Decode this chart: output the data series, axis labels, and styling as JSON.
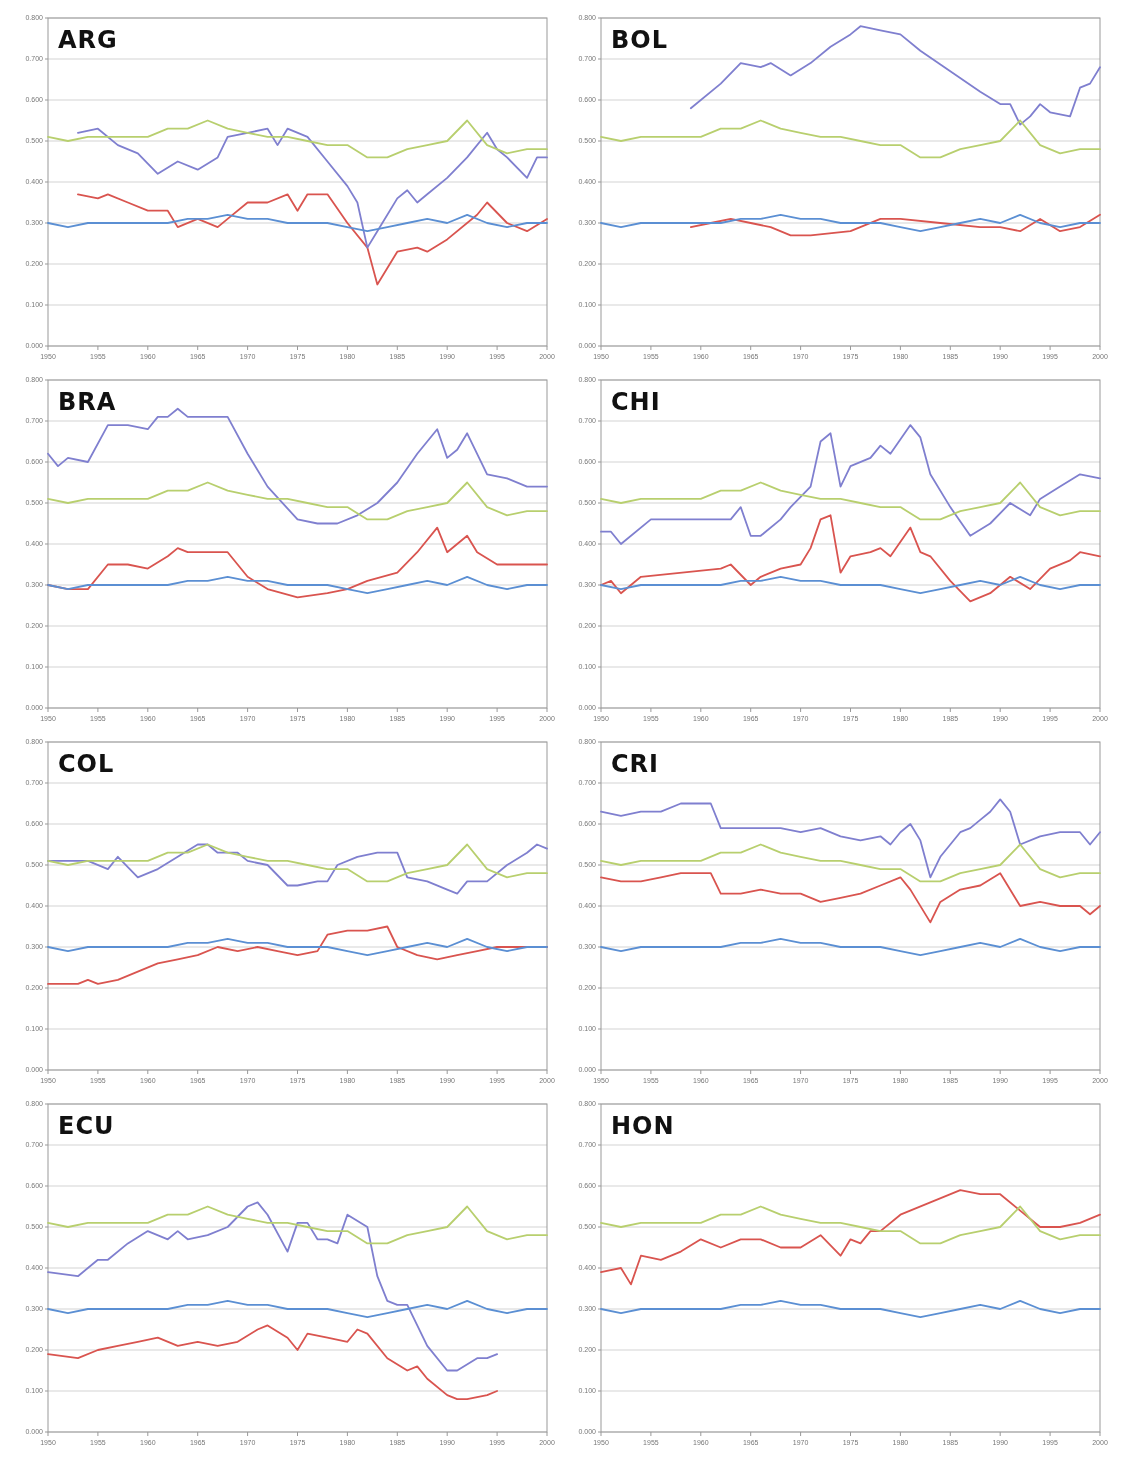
{
  "chart_data": [
    {
      "type": "line",
      "title": "ARG",
      "xlim": [
        1950,
        2000
      ],
      "ylim": [
        0,
        0.8
      ],
      "xticks": [
        1950,
        1955,
        1960,
        1965,
        1970,
        1975,
        1980,
        1985,
        1990,
        1995,
        2000
      ],
      "yticks": [
        {
          "value": 0,
          "label": "0.000"
        },
        {
          "value": 0.1,
          "label": "0.100"
        },
        {
          "value": 0.2,
          "label": "0.200"
        },
        {
          "value": 0.3,
          "label": "0.300"
        },
        {
          "value": 0.4,
          "label": "0.400"
        },
        {
          "value": 0.5,
          "label": "0.500"
        },
        {
          "value": 0.6,
          "label": "0.600"
        },
        {
          "value": 0.7,
          "label": "0.700"
        },
        {
          "value": 0.8,
          "label": "0.800"
        }
      ],
      "grid": "y",
      "marker": "none",
      "line_style": "solid",
      "x": [
        1950,
        1952,
        1954,
        1956,
        1958,
        1960,
        1962,
        1964,
        1966,
        1968,
        1970,
        1972,
        1974,
        1976,
        1978,
        1980,
        1982,
        1984,
        1986,
        1988,
        1990,
        1992,
        1994,
        1996,
        1998,
        2000
      ],
      "series": [
        {
          "color": "#b8cf6e",
          "values": [
            0.51,
            0.5,
            0.51,
            0.51,
            0.51,
            0.51,
            0.53,
            0.53,
            0.55,
            0.53,
            0.52,
            0.51,
            0.51,
            0.5,
            0.49,
            0.49,
            0.46,
            0.46,
            0.48,
            0.49,
            0.5,
            0.55,
            0.49,
            0.47,
            0.48,
            0.48
          ]
        },
        {
          "color": "#5b8fd3",
          "values": [
            0.3,
            0.29,
            0.3,
            0.3,
            0.3,
            0.3,
            0.3,
            0.31,
            0.31,
            0.32,
            0.31,
            0.31,
            0.3,
            0.3,
            0.3,
            0.29,
            0.28,
            0.29,
            0.3,
            0.31,
            0.3,
            0.32,
            0.3,
            0.29,
            0.3,
            0.3
          ]
        },
        {
          "color": "#7f7fcf",
          "x": [
            1953,
            1955,
            1957,
            1959,
            1961,
            1963,
            1965,
            1967,
            1968,
            1970,
            1972,
            1973,
            1974,
            1976,
            1978,
            1980,
            1981,
            1982,
            1983,
            1985,
            1986,
            1987,
            1988,
            1990,
            1992,
            1994,
            1995,
            1996,
            1998,
            1999,
            2000
          ],
          "values": [
            0.52,
            0.53,
            0.49,
            0.47,
            0.42,
            0.45,
            0.43,
            0.46,
            0.51,
            0.52,
            0.53,
            0.49,
            0.53,
            0.51,
            0.45,
            0.39,
            0.35,
            0.24,
            0.28,
            0.36,
            0.38,
            0.35,
            0.37,
            0.41,
            0.46,
            0.52,
            0.48,
            0.46,
            0.41,
            0.46,
            0.46
          ]
        },
        {
          "color": "#d9544f",
          "x": [
            1953,
            1955,
            1956,
            1958,
            1960,
            1962,
            1963,
            1965,
            1967,
            1968,
            1970,
            1972,
            1974,
            1975,
            1976,
            1978,
            1980,
            1982,
            1983,
            1985,
            1987,
            1988,
            1990,
            1993,
            1994,
            1996,
            1998,
            2000
          ],
          "values": [
            0.37,
            0.36,
            0.37,
            0.35,
            0.33,
            0.33,
            0.29,
            0.31,
            0.29,
            0.31,
            0.35,
            0.35,
            0.37,
            0.33,
            0.37,
            0.37,
            0.3,
            0.24,
            0.15,
            0.23,
            0.24,
            0.23,
            0.26,
            0.32,
            0.35,
            0.3,
            0.28,
            0.31
          ]
        }
      ]
    },
    {
      "type": "line",
      "title": "BOL",
      "xlim": [
        1950,
        2000
      ],
      "ylim": [
        0,
        0.8
      ],
      "xticks": [
        1950,
        1955,
        1960,
        1965,
        1970,
        1975,
        1980,
        1985,
        1990,
        1995,
        2000
      ],
      "yticks": [
        {
          "value": 0,
          "label": "0.000"
        },
        {
          "value": 0.1,
          "label": "0.100"
        },
        {
          "value": 0.2,
          "label": "0.200"
        },
        {
          "value": 0.3,
          "label": "0.300"
        },
        {
          "value": 0.4,
          "label": "0.400"
        },
        {
          "value": 0.5,
          "label": "0.500"
        },
        {
          "value": 0.6,
          "label": "0.600"
        },
        {
          "value": 0.7,
          "label": "0.700"
        },
        {
          "value": 0.8,
          "label": "0.800"
        }
      ],
      "grid": "y",
      "marker": "none",
      "line_style": "solid",
      "x": [
        1950,
        1952,
        1954,
        1956,
        1958,
        1960,
        1962,
        1964,
        1966,
        1968,
        1970,
        1972,
        1974,
        1976,
        1978,
        1980,
        1982,
        1984,
        1986,
        1988,
        1990,
        1992,
        1994,
        1996,
        1998,
        2000
      ],
      "series": [
        {
          "color": "#b8cf6e",
          "values": [
            0.51,
            0.5,
            0.51,
            0.51,
            0.51,
            0.51,
            0.53,
            0.53,
            0.55,
            0.53,
            0.52,
            0.51,
            0.51,
            0.5,
            0.49,
            0.49,
            0.46,
            0.46,
            0.48,
            0.49,
            0.5,
            0.55,
            0.49,
            0.47,
            0.48,
            0.48
          ]
        },
        {
          "color": "#5b8fd3",
          "values": [
            0.3,
            0.29,
            0.3,
            0.3,
            0.3,
            0.3,
            0.3,
            0.31,
            0.31,
            0.32,
            0.31,
            0.31,
            0.3,
            0.3,
            0.3,
            0.29,
            0.28,
            0.29,
            0.3,
            0.31,
            0.3,
            0.32,
            0.3,
            0.29,
            0.3,
            0.3
          ]
        },
        {
          "color": "#7f7fcf",
          "x": [
            1959,
            1962,
            1964,
            1966,
            1967,
            1969,
            1971,
            1973,
            1975,
            1976,
            1978,
            1980,
            1982,
            1985,
            1988,
            1990,
            1991,
            1992,
            1993,
            1994,
            1995,
            1997,
            1998,
            1999,
            2000
          ],
          "values": [
            0.58,
            0.64,
            0.69,
            0.68,
            0.69,
            0.66,
            0.69,
            0.73,
            0.76,
            0.78,
            0.77,
            0.76,
            0.72,
            0.67,
            0.62,
            0.59,
            0.59,
            0.54,
            0.56,
            0.59,
            0.57,
            0.56,
            0.63,
            0.64,
            0.68
          ]
        },
        {
          "color": "#d9544f",
          "x": [
            1959,
            1961,
            1963,
            1965,
            1967,
            1969,
            1971,
            1975,
            1978,
            1980,
            1984,
            1988,
            1990,
            1992,
            1994,
            1996,
            1998,
            2000
          ],
          "values": [
            0.29,
            0.3,
            0.31,
            0.3,
            0.29,
            0.27,
            0.27,
            0.28,
            0.31,
            0.31,
            0.3,
            0.29,
            0.29,
            0.28,
            0.31,
            0.28,
            0.29,
            0.32
          ]
        }
      ]
    },
    {
      "type": "line",
      "title": "BRA",
      "xlim": [
        1950,
        2000
      ],
      "ylim": [
        0,
        0.8
      ],
      "xticks": [
        1950,
        1955,
        1960,
        1965,
        1970,
        1975,
        1980,
        1985,
        1990,
        1995,
        2000
      ],
      "yticks": [
        {
          "value": 0,
          "label": "0.000"
        },
        {
          "value": 0.1,
          "label": "0.100"
        },
        {
          "value": 0.2,
          "label": "0.200"
        },
        {
          "value": 0.3,
          "label": "0.300"
        },
        {
          "value": 0.4,
          "label": "0.400"
        },
        {
          "value": 0.5,
          "label": "0.500"
        },
        {
          "value": 0.6,
          "label": "0.600"
        },
        {
          "value": 0.7,
          "label": "0.700"
        },
        {
          "value": 0.8,
          "label": "0.800"
        }
      ],
      "grid": "y",
      "marker": "none",
      "line_style": "solid",
      "x": [
        1950,
        1952,
        1954,
        1956,
        1958,
        1960,
        1962,
        1964,
        1966,
        1968,
        1970,
        1972,
        1974,
        1976,
        1978,
        1980,
        1982,
        1984,
        1986,
        1988,
        1990,
        1992,
        1994,
        1996,
        1998,
        2000
      ],
      "series": [
        {
          "color": "#b8cf6e",
          "values": [
            0.51,
            0.5,
            0.51,
            0.51,
            0.51,
            0.51,
            0.53,
            0.53,
            0.55,
            0.53,
            0.52,
            0.51,
            0.51,
            0.5,
            0.49,
            0.49,
            0.46,
            0.46,
            0.48,
            0.49,
            0.5,
            0.55,
            0.49,
            0.47,
            0.48,
            0.48
          ]
        },
        {
          "color": "#5b8fd3",
          "values": [
            0.3,
            0.29,
            0.3,
            0.3,
            0.3,
            0.3,
            0.3,
            0.31,
            0.31,
            0.32,
            0.31,
            0.31,
            0.3,
            0.3,
            0.3,
            0.29,
            0.28,
            0.29,
            0.3,
            0.31,
            0.3,
            0.32,
            0.3,
            0.29,
            0.3,
            0.3
          ]
        },
        {
          "color": "#7f7fcf",
          "x": [
            1950,
            1951,
            1952,
            1954,
            1956,
            1958,
            1960,
            1961,
            1962,
            1963,
            1964,
            1966,
            1968,
            1970,
            1972,
            1975,
            1977,
            1979,
            1981,
            1983,
            1985,
            1987,
            1989,
            1990,
            1991,
            1992,
            1994,
            1996,
            1998,
            2000
          ],
          "values": [
            0.62,
            0.59,
            0.61,
            0.6,
            0.69,
            0.69,
            0.68,
            0.71,
            0.71,
            0.73,
            0.71,
            0.71,
            0.71,
            0.62,
            0.54,
            0.46,
            0.45,
            0.45,
            0.47,
            0.5,
            0.55,
            0.62,
            0.68,
            0.61,
            0.63,
            0.67,
            0.57,
            0.56,
            0.54,
            0.54
          ]
        },
        {
          "color": "#d9544f",
          "x": [
            1950,
            1952,
            1954,
            1956,
            1958,
            1960,
            1962,
            1963,
            1964,
            1966,
            1968,
            1970,
            1972,
            1975,
            1978,
            1980,
            1982,
            1985,
            1987,
            1989,
            1990,
            1992,
            1993,
            1995,
            1997,
            2000
          ],
          "values": [
            0.3,
            0.29,
            0.29,
            0.35,
            0.35,
            0.34,
            0.37,
            0.39,
            0.38,
            0.38,
            0.38,
            0.32,
            0.29,
            0.27,
            0.28,
            0.29,
            0.31,
            0.33,
            0.38,
            0.44,
            0.38,
            0.42,
            0.38,
            0.35,
            0.35,
            0.35
          ]
        }
      ]
    },
    {
      "type": "line",
      "title": "CHI",
      "xlim": [
        1950,
        2000
      ],
      "ylim": [
        0,
        0.8
      ],
      "xticks": [
        1950,
        1955,
        1960,
        1965,
        1970,
        1975,
        1980,
        1985,
        1990,
        1995,
        2000
      ],
      "yticks": [
        {
          "value": 0,
          "label": "0.000"
        },
        {
          "value": 0.1,
          "label": "0.100"
        },
        {
          "value": 0.2,
          "label": "0.200"
        },
        {
          "value": 0.3,
          "label": "0.300"
        },
        {
          "value": 0.4,
          "label": "0.400"
        },
        {
          "value": 0.5,
          "label": "0.500"
        },
        {
          "value": 0.6,
          "label": "0.600"
        },
        {
          "value": 0.7,
          "label": "0.700"
        },
        {
          "value": 0.8,
          "label": "0.800"
        }
      ],
      "grid": "y",
      "marker": "none",
      "line_style": "solid",
      "x": [
        1950,
        1952,
        1954,
        1956,
        1958,
        1960,
        1962,
        1964,
        1966,
        1968,
        1970,
        1972,
        1974,
        1976,
        1978,
        1980,
        1982,
        1984,
        1986,
        1988,
        1990,
        1992,
        1994,
        1996,
        1998,
        2000
      ],
      "series": [
        {
          "color": "#b8cf6e",
          "values": [
            0.51,
            0.5,
            0.51,
            0.51,
            0.51,
            0.51,
            0.53,
            0.53,
            0.55,
            0.53,
            0.52,
            0.51,
            0.51,
            0.5,
            0.49,
            0.49,
            0.46,
            0.46,
            0.48,
            0.49,
            0.5,
            0.55,
            0.49,
            0.47,
            0.48,
            0.48
          ]
        },
        {
          "color": "#5b8fd3",
          "values": [
            0.3,
            0.29,
            0.3,
            0.3,
            0.3,
            0.3,
            0.3,
            0.31,
            0.31,
            0.32,
            0.31,
            0.31,
            0.3,
            0.3,
            0.3,
            0.29,
            0.28,
            0.29,
            0.3,
            0.31,
            0.3,
            0.32,
            0.3,
            0.29,
            0.3,
            0.3
          ]
        },
        {
          "color": "#7f7fcf",
          "x": [
            1950,
            1951,
            1952,
            1955,
            1963,
            1964,
            1965,
            1966,
            1968,
            1969,
            1971,
            1972,
            1973,
            1974,
            1975,
            1977,
            1978,
            1979,
            1981,
            1982,
            1983,
            1985,
            1987,
            1989,
            1991,
            1993,
            1994,
            1996,
            1998,
            2000
          ],
          "values": [
            0.43,
            0.43,
            0.4,
            0.46,
            0.46,
            0.49,
            0.42,
            0.42,
            0.46,
            0.49,
            0.54,
            0.65,
            0.67,
            0.54,
            0.59,
            0.61,
            0.64,
            0.62,
            0.69,
            0.66,
            0.57,
            0.49,
            0.42,
            0.45,
            0.5,
            0.47,
            0.51,
            0.54,
            0.57,
            0.56
          ]
        },
        {
          "color": "#d9544f",
          "x": [
            1950,
            1951,
            1952,
            1954,
            1962,
            1963,
            1965,
            1966,
            1968,
            1970,
            1971,
            1972,
            1973,
            1974,
            1975,
            1977,
            1978,
            1979,
            1981,
            1982,
            1983,
            1985,
            1987,
            1989,
            1991,
            1993,
            1995,
            1997,
            1998,
            2000
          ],
          "values": [
            0.3,
            0.31,
            0.28,
            0.32,
            0.34,
            0.35,
            0.3,
            0.32,
            0.34,
            0.35,
            0.39,
            0.46,
            0.47,
            0.33,
            0.37,
            0.38,
            0.39,
            0.37,
            0.44,
            0.38,
            0.37,
            0.31,
            0.26,
            0.28,
            0.32,
            0.29,
            0.34,
            0.36,
            0.38,
            0.37
          ]
        }
      ]
    },
    {
      "type": "line",
      "title": "COL",
      "xlim": [
        1950,
        2000
      ],
      "ylim": [
        0,
        0.8
      ],
      "xticks": [
        1950,
        1955,
        1960,
        1965,
        1970,
        1975,
        1980,
        1985,
        1990,
        1995,
        2000
      ],
      "yticks": [
        {
          "value": 0,
          "label": "0.000"
        },
        {
          "value": 0.1,
          "label": "0.100"
        },
        {
          "value": 0.2,
          "label": "0.200"
        },
        {
          "value": 0.3,
          "label": "0.300"
        },
        {
          "value": 0.4,
          "label": "0.400"
        },
        {
          "value": 0.5,
          "label": "0.500"
        },
        {
          "value": 0.6,
          "label": "0.600"
        },
        {
          "value": 0.7,
          "label": "0.700"
        },
        {
          "value": 0.8,
          "label": "0.800"
        }
      ],
      "grid": "y",
      "marker": "none",
      "line_style": "solid",
      "x": [
        1950,
        1952,
        1954,
        1956,
        1958,
        1960,
        1962,
        1964,
        1966,
        1968,
        1970,
        1972,
        1974,
        1976,
        1978,
        1980,
        1982,
        1984,
        1986,
        1988,
        1990,
        1992,
        1994,
        1996,
        1998,
        2000
      ],
      "series": [
        {
          "color": "#b8cf6e",
          "values": [
            0.51,
            0.5,
            0.51,
            0.51,
            0.51,
            0.51,
            0.53,
            0.53,
            0.55,
            0.53,
            0.52,
            0.51,
            0.51,
            0.5,
            0.49,
            0.49,
            0.46,
            0.46,
            0.48,
            0.49,
            0.5,
            0.55,
            0.49,
            0.47,
            0.48,
            0.48
          ]
        },
        {
          "color": "#5b8fd3",
          "values": [
            0.3,
            0.29,
            0.3,
            0.3,
            0.3,
            0.3,
            0.3,
            0.31,
            0.31,
            0.32,
            0.31,
            0.31,
            0.3,
            0.3,
            0.3,
            0.29,
            0.28,
            0.29,
            0.3,
            0.31,
            0.3,
            0.32,
            0.3,
            0.29,
            0.3,
            0.3
          ]
        },
        {
          "color": "#7f7fcf",
          "x": [
            1950,
            1954,
            1956,
            1957,
            1959,
            1961,
            1963,
            1965,
            1966,
            1967,
            1969,
            1970,
            1972,
            1974,
            1975,
            1977,
            1978,
            1979,
            1981,
            1983,
            1985,
            1986,
            1988,
            1990,
            1991,
            1992,
            1994,
            1996,
            1998,
            1999,
            2000
          ],
          "values": [
            0.51,
            0.51,
            0.49,
            0.52,
            0.47,
            0.49,
            0.52,
            0.55,
            0.55,
            0.53,
            0.53,
            0.51,
            0.5,
            0.45,
            0.45,
            0.46,
            0.46,
            0.5,
            0.52,
            0.53,
            0.53,
            0.47,
            0.46,
            0.44,
            0.43,
            0.46,
            0.46,
            0.5,
            0.53,
            0.55,
            0.54
          ]
        },
        {
          "color": "#d9544f",
          "x": [
            1950,
            1953,
            1954,
            1955,
            1957,
            1959,
            1961,
            1963,
            1965,
            1967,
            1969,
            1971,
            1973,
            1975,
            1977,
            1978,
            1980,
            1982,
            1984,
            1985,
            1987,
            1989,
            1991,
            1993,
            1995,
            1997,
            2000
          ],
          "values": [
            0.21,
            0.21,
            0.22,
            0.21,
            0.22,
            0.24,
            0.26,
            0.27,
            0.28,
            0.3,
            0.29,
            0.3,
            0.29,
            0.28,
            0.29,
            0.33,
            0.34,
            0.34,
            0.35,
            0.3,
            0.28,
            0.27,
            0.28,
            0.29,
            0.3,
            0.3,
            0.3
          ]
        }
      ]
    },
    {
      "type": "line",
      "title": "CRI",
      "xlim": [
        1950,
        2000
      ],
      "ylim": [
        0,
        0.8
      ],
      "xticks": [
        1950,
        1955,
        1960,
        1965,
        1970,
        1975,
        1980,
        1985,
        1990,
        1995,
        2000
      ],
      "yticks": [
        {
          "value": 0,
          "label": "0.000"
        },
        {
          "value": 0.1,
          "label": "0.100"
        },
        {
          "value": 0.2,
          "label": "0.200"
        },
        {
          "value": 0.3,
          "label": "0.300"
        },
        {
          "value": 0.4,
          "label": "0.400"
        },
        {
          "value": 0.5,
          "label": "0.500"
        },
        {
          "value": 0.6,
          "label": "0.600"
        },
        {
          "value": 0.7,
          "label": "0.700"
        },
        {
          "value": 0.8,
          "label": "0.800"
        }
      ],
      "grid": "y",
      "marker": "none",
      "line_style": "solid",
      "x": [
        1950,
        1952,
        1954,
        1956,
        1958,
        1960,
        1962,
        1964,
        1966,
        1968,
        1970,
        1972,
        1974,
        1976,
        1978,
        1980,
        1982,
        1984,
        1986,
        1988,
        1990,
        1992,
        1994,
        1996,
        1998,
        2000
      ],
      "series": [
        {
          "color": "#b8cf6e",
          "values": [
            0.51,
            0.5,
            0.51,
            0.51,
            0.51,
            0.51,
            0.53,
            0.53,
            0.55,
            0.53,
            0.52,
            0.51,
            0.51,
            0.5,
            0.49,
            0.49,
            0.46,
            0.46,
            0.48,
            0.49,
            0.5,
            0.55,
            0.49,
            0.47,
            0.48,
            0.48
          ]
        },
        {
          "color": "#5b8fd3",
          "values": [
            0.3,
            0.29,
            0.3,
            0.3,
            0.3,
            0.3,
            0.3,
            0.31,
            0.31,
            0.32,
            0.31,
            0.31,
            0.3,
            0.3,
            0.3,
            0.29,
            0.28,
            0.29,
            0.3,
            0.31,
            0.3,
            0.32,
            0.3,
            0.29,
            0.3,
            0.3
          ]
        },
        {
          "color": "#7f7fcf",
          "x": [
            1950,
            1952,
            1954,
            1956,
            1958,
            1961,
            1962,
            1965,
            1968,
            1970,
            1972,
            1974,
            1976,
            1978,
            1979,
            1980,
            1981,
            1982,
            1983,
            1984,
            1986,
            1987,
            1988,
            1989,
            1990,
            1991,
            1992,
            1994,
            1996,
            1998,
            1999,
            2000
          ],
          "values": [
            0.63,
            0.62,
            0.63,
            0.63,
            0.65,
            0.65,
            0.59,
            0.59,
            0.59,
            0.58,
            0.59,
            0.57,
            0.56,
            0.57,
            0.55,
            0.58,
            0.6,
            0.56,
            0.47,
            0.52,
            0.58,
            0.59,
            0.61,
            0.63,
            0.66,
            0.63,
            0.55,
            0.57,
            0.58,
            0.58,
            0.55,
            0.58
          ]
        },
        {
          "color": "#d9544f",
          "x": [
            1950,
            1952,
            1954,
            1956,
            1958,
            1961,
            1962,
            1964,
            1966,
            1968,
            1970,
            1972,
            1974,
            1976,
            1978,
            1980,
            1981,
            1983,
            1984,
            1986,
            1988,
            1990,
            1992,
            1994,
            1996,
            1998,
            1999,
            2000
          ],
          "values": [
            0.47,
            0.46,
            0.46,
            0.47,
            0.48,
            0.48,
            0.43,
            0.43,
            0.44,
            0.43,
            0.43,
            0.41,
            0.42,
            0.43,
            0.45,
            0.47,
            0.44,
            0.36,
            0.41,
            0.44,
            0.45,
            0.48,
            0.4,
            0.41,
            0.4,
            0.4,
            0.38,
            0.4
          ]
        }
      ]
    },
    {
      "type": "line",
      "title": "ECU",
      "xlim": [
        1950,
        2000
      ],
      "ylim": [
        0,
        0.8
      ],
      "xticks": [
        1950,
        1955,
        1960,
        1965,
        1970,
        1975,
        1980,
        1985,
        1990,
        1995,
        2000
      ],
      "yticks": [
        {
          "value": 0,
          "label": "0.000"
        },
        {
          "value": 0.1,
          "label": "0.100"
        },
        {
          "value": 0.2,
          "label": "0.200"
        },
        {
          "value": 0.3,
          "label": "0.300"
        },
        {
          "value": 0.4,
          "label": "0.400"
        },
        {
          "value": 0.5,
          "label": "0.500"
        },
        {
          "value": 0.6,
          "label": "0.600"
        },
        {
          "value": 0.7,
          "label": "0.700"
        },
        {
          "value": 0.8,
          "label": "0.800"
        }
      ],
      "grid": "y",
      "marker": "none",
      "line_style": "solid",
      "x": [
        1950,
        1952,
        1954,
        1956,
        1958,
        1960,
        1962,
        1964,
        1966,
        1968,
        1970,
        1972,
        1974,
        1976,
        1978,
        1980,
        1982,
        1984,
        1986,
        1988,
        1990,
        1992,
        1994,
        1996,
        1998,
        2000
      ],
      "series": [
        {
          "color": "#b8cf6e",
          "values": [
            0.51,
            0.5,
            0.51,
            0.51,
            0.51,
            0.51,
            0.53,
            0.53,
            0.55,
            0.53,
            0.52,
            0.51,
            0.51,
            0.5,
            0.49,
            0.49,
            0.46,
            0.46,
            0.48,
            0.49,
            0.5,
            0.55,
            0.49,
            0.47,
            0.48,
            0.48
          ]
        },
        {
          "color": "#5b8fd3",
          "values": [
            0.3,
            0.29,
            0.3,
            0.3,
            0.3,
            0.3,
            0.3,
            0.31,
            0.31,
            0.32,
            0.31,
            0.31,
            0.3,
            0.3,
            0.3,
            0.29,
            0.28,
            0.29,
            0.3,
            0.31,
            0.3,
            0.32,
            0.3,
            0.29,
            0.3,
            0.3
          ]
        },
        {
          "color": "#7f7fcf",
          "x": [
            1950,
            1953,
            1955,
            1956,
            1958,
            1960,
            1962,
            1963,
            1964,
            1966,
            1968,
            1970,
            1971,
            1972,
            1974,
            1975,
            1976,
            1977,
            1978,
            1979,
            1980,
            1982,
            1983,
            1984,
            1985,
            1986,
            1988,
            1990,
            1991,
            1993,
            1994,
            1995
          ],
          "values": [
            0.39,
            0.38,
            0.42,
            0.42,
            0.46,
            0.49,
            0.47,
            0.49,
            0.47,
            0.48,
            0.5,
            0.55,
            0.56,
            0.53,
            0.44,
            0.51,
            0.51,
            0.47,
            0.47,
            0.46,
            0.53,
            0.5,
            0.38,
            0.32,
            0.31,
            0.31,
            0.21,
            0.15,
            0.15,
            0.18,
            0.18,
            0.19
          ]
        },
        {
          "color": "#d9544f",
          "x": [
            1950,
            1953,
            1955,
            1957,
            1959,
            1961,
            1963,
            1965,
            1967,
            1969,
            1971,
            1972,
            1974,
            1975,
            1976,
            1978,
            1980,
            1981,
            1982,
            1984,
            1986,
            1987,
            1988,
            1990,
            1991,
            1992,
            1994,
            1995
          ],
          "values": [
            0.19,
            0.18,
            0.2,
            0.21,
            0.22,
            0.23,
            0.21,
            0.22,
            0.21,
            0.22,
            0.25,
            0.26,
            0.23,
            0.2,
            0.24,
            0.23,
            0.22,
            0.25,
            0.24,
            0.18,
            0.15,
            0.16,
            0.13,
            0.09,
            0.08,
            0.08,
            0.09,
            0.1
          ]
        }
      ]
    },
    {
      "type": "line",
      "title": "HON",
      "xlim": [
        1950,
        2000
      ],
      "ylim": [
        0,
        0.8
      ],
      "xticks": [
        1950,
        1955,
        1960,
        1965,
        1970,
        1975,
        1980,
        1985,
        1990,
        1995,
        2000
      ],
      "yticks": [
        {
          "value": 0,
          "label": "0.000"
        },
        {
          "value": 0.1,
          "label": "0.100"
        },
        {
          "value": 0.2,
          "label": "0.200"
        },
        {
          "value": 0.3,
          "label": "0.300"
        },
        {
          "value": 0.4,
          "label": "0.400"
        },
        {
          "value": 0.5,
          "label": "0.500"
        },
        {
          "value": 0.6,
          "label": "0.600"
        },
        {
          "value": 0.7,
          "label": "0.700"
        },
        {
          "value": 0.8,
          "label": "0.800"
        }
      ],
      "grid": "y",
      "marker": "none",
      "line_style": "solid",
      "x": [
        1950,
        1952,
        1954,
        1956,
        1958,
        1960,
        1962,
        1964,
        1966,
        1968,
        1970,
        1972,
        1974,
        1976,
        1978,
        1980,
        1982,
        1984,
        1986,
        1988,
        1990,
        1992,
        1994,
        1996,
        1998,
        2000
      ],
      "series": [
        {
          "color": "#b8cf6e",
          "values": [
            0.51,
            0.5,
            0.51,
            0.51,
            0.51,
            0.51,
            0.53,
            0.53,
            0.55,
            0.53,
            0.52,
            0.51,
            0.51,
            0.5,
            0.49,
            0.49,
            0.46,
            0.46,
            0.48,
            0.49,
            0.5,
            0.55,
            0.49,
            0.47,
            0.48,
            0.48
          ]
        },
        {
          "color": "#5b8fd3",
          "values": [
            0.3,
            0.29,
            0.3,
            0.3,
            0.3,
            0.3,
            0.3,
            0.31,
            0.31,
            0.32,
            0.31,
            0.31,
            0.3,
            0.3,
            0.3,
            0.29,
            0.28,
            0.29,
            0.3,
            0.31,
            0.3,
            0.32,
            0.3,
            0.29,
            0.3,
            0.3
          ]
        },
        {
          "color": "#d9544f",
          "x": [
            1950,
            1952,
            1953,
            1954,
            1956,
            1958,
            1960,
            1962,
            1964,
            1966,
            1968,
            1970,
            1972,
            1974,
            1975,
            1976,
            1977,
            1978,
            1980,
            1983,
            1986,
            1988,
            1990,
            1992,
            1994,
            1996,
            1998,
            2000
          ],
          "values": [
            0.39,
            0.4,
            0.36,
            0.43,
            0.42,
            0.44,
            0.47,
            0.45,
            0.47,
            0.47,
            0.45,
            0.45,
            0.48,
            0.43,
            0.47,
            0.46,
            0.49,
            0.49,
            0.53,
            0.56,
            0.59,
            0.58,
            0.58,
            0.54,
            0.5,
            0.5,
            0.51,
            0.53
          ]
        }
      ]
    }
  ]
}
